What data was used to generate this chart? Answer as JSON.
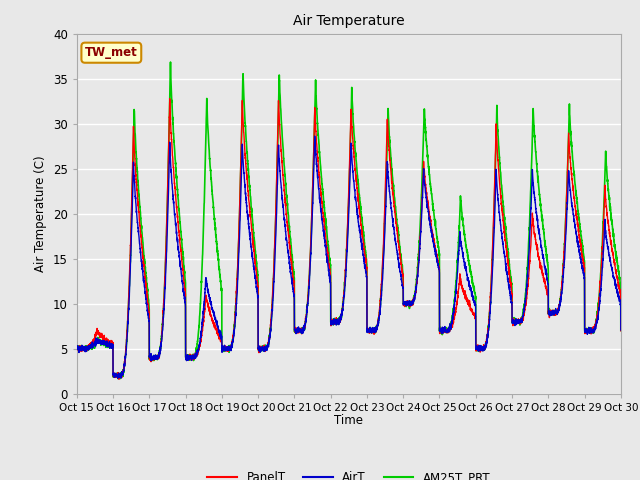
{
  "title": "Air Temperature",
  "ylabel": "Air Temperature (C)",
  "xlabel": "Time",
  "annotation": "TW_met",
  "ylim": [
    0,
    40
  ],
  "xlim": [
    0,
    15
  ],
  "xtick_labels": [
    "Oct 15",
    "Oct 16",
    "Oct 17",
    "Oct 18",
    "Oct 19",
    "Oct 20",
    "Oct 21",
    "Oct 22",
    "Oct 23",
    "Oct 24",
    "Oct 25",
    "Oct 26",
    "Oct 27",
    "Oct 28",
    "Oct 29",
    "Oct 30"
  ],
  "ytick_values": [
    0,
    5,
    10,
    15,
    20,
    25,
    30,
    35,
    40
  ],
  "line_colors": {
    "PanelT": "#ff0000",
    "AirT": "#0000cc",
    "AM25T_PRT": "#00cc00"
  },
  "line_widths": {
    "PanelT": 1.0,
    "AirT": 1.0,
    "AM25T_PRT": 1.2
  },
  "background_color": "#e8e8e8",
  "annotation_facecolor": "#ffffcc",
  "annotation_edgecolor": "#cc8800",
  "annotation_textcolor": "#8B0000",
  "grid_color": "#ffffff",
  "daily_mins": [
    5,
    2,
    4,
    4,
    5,
    5,
    7,
    8,
    7,
    10,
    7,
    5,
    8,
    9,
    7
  ],
  "daily_maxes_panel": [
    7,
    30,
    33,
    11,
    33,
    33,
    32,
    32,
    31,
    26,
    13,
    30,
    20,
    29,
    23
  ],
  "daily_maxes_air": [
    6,
    26,
    28,
    13,
    28,
    28,
    29,
    28,
    26,
    25,
    18,
    25,
    25,
    25,
    19
  ],
  "daily_maxes_am25": [
    6,
    32,
    37,
    33,
    36,
    36,
    35,
    34,
    32,
    32,
    22,
    32,
    32,
    32,
    27
  ],
  "peak_hour_panel": 13.5,
  "peak_hour_air": 13.5,
  "peak_hour_am25": 14.0,
  "min_hour": 5.0,
  "points_per_day": 288
}
